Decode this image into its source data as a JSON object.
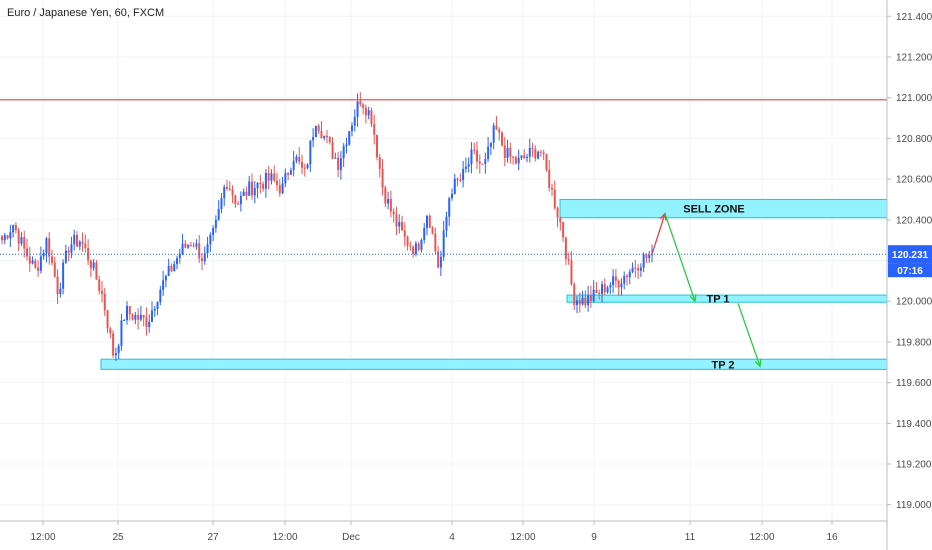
{
  "chart_title": "Euro / Japanese Yen, 60, FXCM",
  "current_price_label": "120.231",
  "countdown_label": "07:16",
  "colors": {
    "up": "#2962ff",
    "down": "#ef5350",
    "resistance": "#ef5350",
    "zone_fill": "#80f0ff",
    "zone_border": "#23c3d3",
    "price_line": "#2962ff",
    "arrow_up": "#ef3b3b",
    "arrow_down": "#2ecc40"
  },
  "chart_data": {
    "type": "candlestick",
    "title": "Euro / Japanese Yen, 60, FXCM",
    "xlabel": "",
    "ylabel": "",
    "ylim": [
      118.92,
      121.48
    ],
    "yticks": [
      "121.400",
      "121.200",
      "121.000",
      "120.800",
      "120.600",
      "120.400",
      "120.200",
      "120.000",
      "119.800",
      "119.600",
      "119.400",
      "119.200",
      "119.000"
    ],
    "xticks": [
      "12:00",
      "25",
      "27",
      "12:00",
      "Dec",
      "4",
      "12:00",
      "9",
      "11",
      "12:00",
      "16"
    ],
    "last_price": 120.231,
    "resistance_level": 120.99,
    "annotations": [
      {
        "label": "SELL ZONE",
        "low": 120.41,
        "high": 120.5
      },
      {
        "label": "TP 1",
        "low": 119.995,
        "high": 120.03
      },
      {
        "label": "TP 2",
        "low": 119.665,
        "high": 119.715
      }
    ],
    "projection_path": [
      120.231,
      120.43,
      120.0,
      119.68
    ],
    "close_path": [
      120.3,
      120.38,
      120.25,
      120.15,
      120.3,
      120.05,
      120.28,
      120.3,
      120.18,
      120.02,
      119.72,
      119.95,
      119.92,
      119.9,
      120.05,
      120.15,
      120.25,
      120.3,
      120.2,
      120.35,
      120.6,
      120.48,
      120.55,
      120.58,
      120.6,
      120.55,
      120.72,
      120.62,
      120.9,
      120.78,
      120.68,
      120.85,
      121.0,
      120.9,
      120.55,
      120.4,
      120.3,
      120.25,
      120.45,
      120.15,
      120.55,
      120.6,
      120.72,
      120.65,
      120.85,
      120.72,
      120.68,
      120.72,
      120.75,
      120.55,
      120.35,
      120.02,
      120.0,
      120.03,
      120.08,
      120.1,
      120.15,
      120.2,
      120.231
    ],
    "candle_count": 235
  }
}
